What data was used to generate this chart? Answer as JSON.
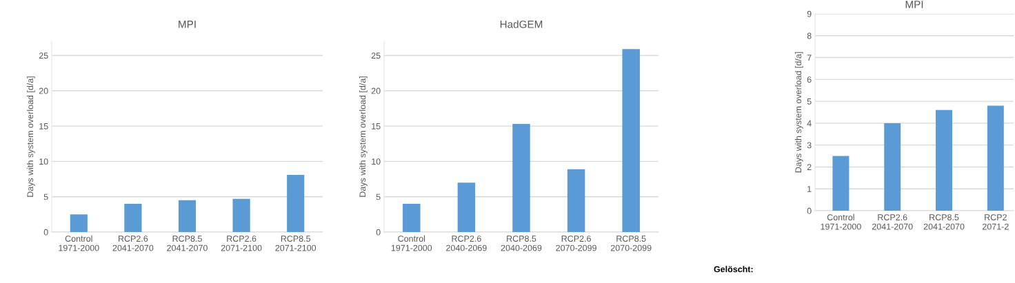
{
  "chart_data": [
    {
      "type": "bar",
      "title": "MPI",
      "ylabel": "Days with system overload [d/a]",
      "categories": [
        "Control\n1971-2000",
        "RCP2.6\n2041-2070",
        "RCP8.5\n2041-2070",
        "RCP2.6\n2071-2100",
        "RCP8.5\n2071-2100"
      ],
      "values": [
        2.5,
        4.0,
        4.5,
        4.7,
        8.1
      ],
      "color": "#5b9bd5",
      "ylim": [
        0,
        27
      ],
      "yticks": [
        0,
        5,
        10,
        15,
        20,
        25
      ],
      "grid": "y"
    },
    {
      "type": "bar",
      "title": "HadGEM",
      "ylabel": "Days with system overload [d/a]",
      "categories": [
        "Control\n1971-2000",
        "RCP2.6\n2040-2069",
        "RCP8.5\n2040-2069",
        "RCP2.6\n2070-2099",
        "RCP8.5\n2070-2099"
      ],
      "values": [
        4.0,
        7.0,
        15.3,
        8.9,
        25.9
      ],
      "color": "#5b9bd5",
      "ylim": [
        0,
        27
      ],
      "yticks": [
        0,
        5,
        10,
        15,
        20,
        25
      ],
      "grid": "y"
    },
    {
      "type": "bar",
      "title": "MPI",
      "ylabel": "Days with system overload [d/a]",
      "categories": [
        "Control\n1971-2000",
        "RCP2.6\n2041-2070",
        "RCP8.5\n2041-2070",
        "RCP2\n2071-2"
      ],
      "values": [
        2.5,
        4.0,
        4.6,
        4.8
      ],
      "color": "#5b9bd5",
      "ylim": [
        0,
        9
      ],
      "yticks": [
        0,
        1,
        2,
        3,
        4,
        5,
        6,
        7,
        8,
        9
      ],
      "grid": "y",
      "annotations": [
        "Gelöscht:"
      ]
    }
  ]
}
